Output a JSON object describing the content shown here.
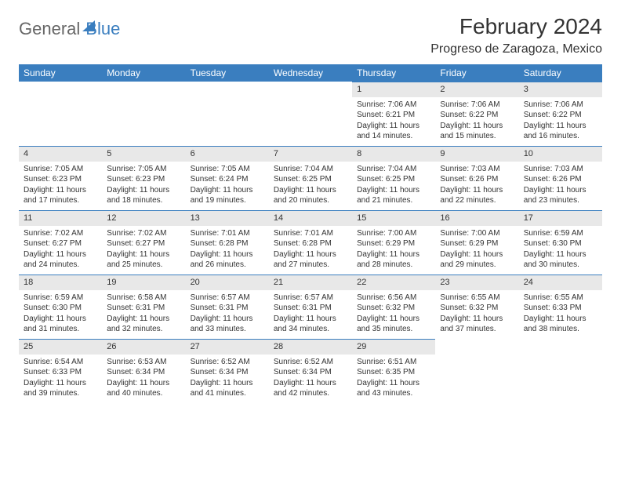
{
  "logo": {
    "part1": "General",
    "part2": "Blue"
  },
  "title": "February 2024",
  "location": "Progreso de Zaragoza, Mexico",
  "colors": {
    "header_bg": "#3a7ebf",
    "header_text": "#ffffff",
    "daynum_bg": "#e8e8e8",
    "daynum_border": "#3a7ebf",
    "page_bg": "#ffffff",
    "text": "#333333"
  },
  "weekdays": [
    "Sunday",
    "Monday",
    "Tuesday",
    "Wednesday",
    "Thursday",
    "Friday",
    "Saturday"
  ],
  "weeks": [
    [
      {
        "day": "",
        "sunrise": "",
        "sunset": "",
        "daylight": ""
      },
      {
        "day": "",
        "sunrise": "",
        "sunset": "",
        "daylight": ""
      },
      {
        "day": "",
        "sunrise": "",
        "sunset": "",
        "daylight": ""
      },
      {
        "day": "",
        "sunrise": "",
        "sunset": "",
        "daylight": ""
      },
      {
        "day": "1",
        "sunrise": "Sunrise: 7:06 AM",
        "sunset": "Sunset: 6:21 PM",
        "daylight": "Daylight: 11 hours and 14 minutes."
      },
      {
        "day": "2",
        "sunrise": "Sunrise: 7:06 AM",
        "sunset": "Sunset: 6:22 PM",
        "daylight": "Daylight: 11 hours and 15 minutes."
      },
      {
        "day": "3",
        "sunrise": "Sunrise: 7:06 AM",
        "sunset": "Sunset: 6:22 PM",
        "daylight": "Daylight: 11 hours and 16 minutes."
      }
    ],
    [
      {
        "day": "4",
        "sunrise": "Sunrise: 7:05 AM",
        "sunset": "Sunset: 6:23 PM",
        "daylight": "Daylight: 11 hours and 17 minutes."
      },
      {
        "day": "5",
        "sunrise": "Sunrise: 7:05 AM",
        "sunset": "Sunset: 6:23 PM",
        "daylight": "Daylight: 11 hours and 18 minutes."
      },
      {
        "day": "6",
        "sunrise": "Sunrise: 7:05 AM",
        "sunset": "Sunset: 6:24 PM",
        "daylight": "Daylight: 11 hours and 19 minutes."
      },
      {
        "day": "7",
        "sunrise": "Sunrise: 7:04 AM",
        "sunset": "Sunset: 6:25 PM",
        "daylight": "Daylight: 11 hours and 20 minutes."
      },
      {
        "day": "8",
        "sunrise": "Sunrise: 7:04 AM",
        "sunset": "Sunset: 6:25 PM",
        "daylight": "Daylight: 11 hours and 21 minutes."
      },
      {
        "day": "9",
        "sunrise": "Sunrise: 7:03 AM",
        "sunset": "Sunset: 6:26 PM",
        "daylight": "Daylight: 11 hours and 22 minutes."
      },
      {
        "day": "10",
        "sunrise": "Sunrise: 7:03 AM",
        "sunset": "Sunset: 6:26 PM",
        "daylight": "Daylight: 11 hours and 23 minutes."
      }
    ],
    [
      {
        "day": "11",
        "sunrise": "Sunrise: 7:02 AM",
        "sunset": "Sunset: 6:27 PM",
        "daylight": "Daylight: 11 hours and 24 minutes."
      },
      {
        "day": "12",
        "sunrise": "Sunrise: 7:02 AM",
        "sunset": "Sunset: 6:27 PM",
        "daylight": "Daylight: 11 hours and 25 minutes."
      },
      {
        "day": "13",
        "sunrise": "Sunrise: 7:01 AM",
        "sunset": "Sunset: 6:28 PM",
        "daylight": "Daylight: 11 hours and 26 minutes."
      },
      {
        "day": "14",
        "sunrise": "Sunrise: 7:01 AM",
        "sunset": "Sunset: 6:28 PM",
        "daylight": "Daylight: 11 hours and 27 minutes."
      },
      {
        "day": "15",
        "sunrise": "Sunrise: 7:00 AM",
        "sunset": "Sunset: 6:29 PM",
        "daylight": "Daylight: 11 hours and 28 minutes."
      },
      {
        "day": "16",
        "sunrise": "Sunrise: 7:00 AM",
        "sunset": "Sunset: 6:29 PM",
        "daylight": "Daylight: 11 hours and 29 minutes."
      },
      {
        "day": "17",
        "sunrise": "Sunrise: 6:59 AM",
        "sunset": "Sunset: 6:30 PM",
        "daylight": "Daylight: 11 hours and 30 minutes."
      }
    ],
    [
      {
        "day": "18",
        "sunrise": "Sunrise: 6:59 AM",
        "sunset": "Sunset: 6:30 PM",
        "daylight": "Daylight: 11 hours and 31 minutes."
      },
      {
        "day": "19",
        "sunrise": "Sunrise: 6:58 AM",
        "sunset": "Sunset: 6:31 PM",
        "daylight": "Daylight: 11 hours and 32 minutes."
      },
      {
        "day": "20",
        "sunrise": "Sunrise: 6:57 AM",
        "sunset": "Sunset: 6:31 PM",
        "daylight": "Daylight: 11 hours and 33 minutes."
      },
      {
        "day": "21",
        "sunrise": "Sunrise: 6:57 AM",
        "sunset": "Sunset: 6:31 PM",
        "daylight": "Daylight: 11 hours and 34 minutes."
      },
      {
        "day": "22",
        "sunrise": "Sunrise: 6:56 AM",
        "sunset": "Sunset: 6:32 PM",
        "daylight": "Daylight: 11 hours and 35 minutes."
      },
      {
        "day": "23",
        "sunrise": "Sunrise: 6:55 AM",
        "sunset": "Sunset: 6:32 PM",
        "daylight": "Daylight: 11 hours and 37 minutes."
      },
      {
        "day": "24",
        "sunrise": "Sunrise: 6:55 AM",
        "sunset": "Sunset: 6:33 PM",
        "daylight": "Daylight: 11 hours and 38 minutes."
      }
    ],
    [
      {
        "day": "25",
        "sunrise": "Sunrise: 6:54 AM",
        "sunset": "Sunset: 6:33 PM",
        "daylight": "Daylight: 11 hours and 39 minutes."
      },
      {
        "day": "26",
        "sunrise": "Sunrise: 6:53 AM",
        "sunset": "Sunset: 6:34 PM",
        "daylight": "Daylight: 11 hours and 40 minutes."
      },
      {
        "day": "27",
        "sunrise": "Sunrise: 6:52 AM",
        "sunset": "Sunset: 6:34 PM",
        "daylight": "Daylight: 11 hours and 41 minutes."
      },
      {
        "day": "28",
        "sunrise": "Sunrise: 6:52 AM",
        "sunset": "Sunset: 6:34 PM",
        "daylight": "Daylight: 11 hours and 42 minutes."
      },
      {
        "day": "29",
        "sunrise": "Sunrise: 6:51 AM",
        "sunset": "Sunset: 6:35 PM",
        "daylight": "Daylight: 11 hours and 43 minutes."
      },
      {
        "day": "",
        "sunrise": "",
        "sunset": "",
        "daylight": ""
      },
      {
        "day": "",
        "sunrise": "",
        "sunset": "",
        "daylight": ""
      }
    ]
  ]
}
